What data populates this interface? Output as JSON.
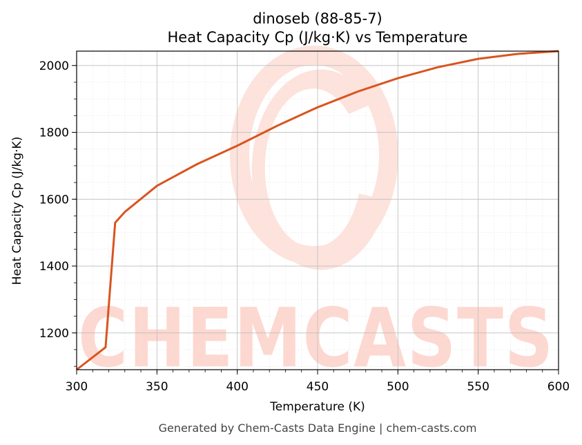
{
  "chart_data": {
    "type": "line",
    "title": "dinoseb (88-85-7)",
    "subtitle": "Heat Capacity Cp (J/kg·K) vs Temperature",
    "xlabel": "Temperature (K)",
    "ylabel": "Heat Capacity Cp (J/kg·K)",
    "xlim": [
      300,
      600
    ],
    "ylim": [
      1090,
      2043
    ],
    "x_ticks": [
      300,
      350,
      400,
      450,
      500,
      550,
      600
    ],
    "y_ticks": [
      1200,
      1400,
      1600,
      1800,
      2000
    ],
    "grid": true,
    "series": [
      {
        "color": "#d9541f",
        "x": [
          300,
          318,
          324,
          330,
          350,
          375,
          400,
          425,
          450,
          475,
          500,
          525,
          550,
          575,
          600
        ],
        "y": [
          1090,
          1157,
          1530,
          1562,
          1640,
          1705,
          1760,
          1820,
          1875,
          1922,
          1962,
          1995,
          2020,
          2035,
          2043
        ]
      }
    ]
  },
  "footer": "Generated by Chem-Casts Data Engine | chem-casts.com",
  "watermark": "CHEMCASTS"
}
